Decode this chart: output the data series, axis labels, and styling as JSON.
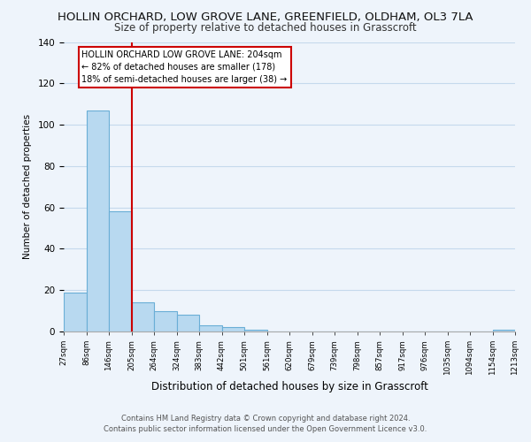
{
  "title": "HOLLIN ORCHARD, LOW GROVE LANE, GREENFIELD, OLDHAM, OL3 7LA",
  "subtitle": "Size of property relative to detached houses in Grasscroft",
  "bar_values": [
    19,
    107,
    58,
    14,
    10,
    8,
    3,
    2,
    1,
    0,
    0,
    0,
    0,
    0,
    0,
    0,
    0,
    0,
    0,
    1
  ],
  "bar_labels": [
    "27sqm",
    "86sqm",
    "146sqm",
    "205sqm",
    "264sqm",
    "324sqm",
    "383sqm",
    "442sqm",
    "501sqm",
    "561sqm",
    "620sqm",
    "679sqm",
    "739sqm",
    "798sqm",
    "857sqm",
    "917sqm",
    "976sqm",
    "1035sqm",
    "1094sqm",
    "1154sqm",
    "1213sqm"
  ],
  "bar_color": "#b8d9f0",
  "bar_edge_color": "#6aaed6",
  "vline_color": "#cc0000",
  "annotation_title": "HOLLIN ORCHARD LOW GROVE LANE: 204sqm",
  "annotation_line1": "← 82% of detached houses are smaller (178)",
  "annotation_line2": "18% of semi-detached houses are larger (38) →",
  "xlabel": "Distribution of detached houses by size in Grasscroft",
  "ylabel": "Number of detached properties",
  "ylim": [
    0,
    140
  ],
  "yticks": [
    0,
    20,
    40,
    60,
    80,
    100,
    120,
    140
  ],
  "footer_line1": "Contains HM Land Registry data © Crown copyright and database right 2024.",
  "footer_line2": "Contains public sector information licensed under the Open Government Licence v3.0.",
  "bg_color": "#eef4fb",
  "grid_color": "#c5d9ec",
  "title_fontsize": 9.5,
  "subtitle_fontsize": 8.5
}
